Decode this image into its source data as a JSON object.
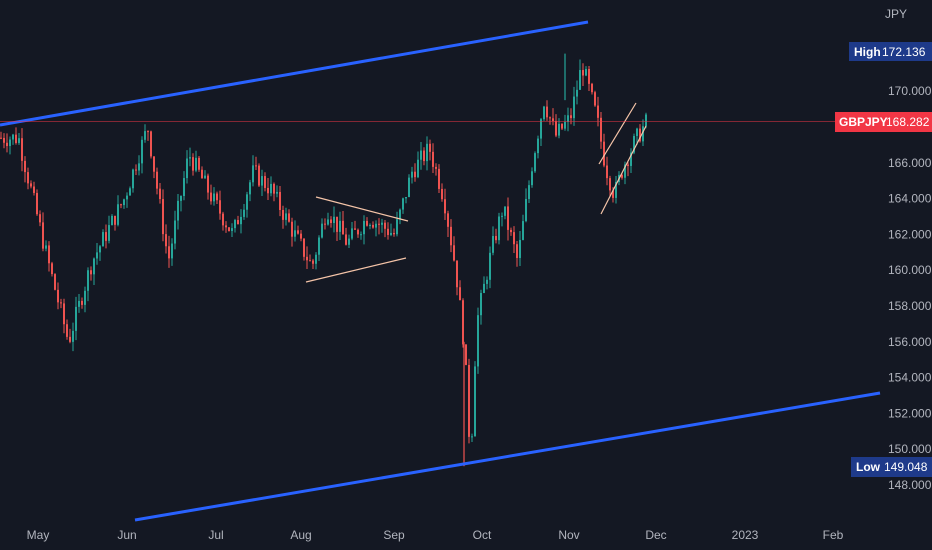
{
  "chart_data": {
    "type": "candlestick",
    "symbol": "GBPJPY",
    "currency": "JPY",
    "ylim": [
      146.8,
      173.8
    ],
    "y_ticks": [
      "148.000",
      "150.000",
      "152.000",
      "154.000",
      "156.000",
      "158.000",
      "160.000",
      "162.000",
      "164.000",
      "166.000",
      "168.000",
      "170.000"
    ],
    "x_ticks": [
      "May",
      "Jun",
      "Jul",
      "Aug",
      "Sep",
      "Oct",
      "Nov",
      "Dec",
      "2023",
      "Feb"
    ],
    "last_price": {
      "label": "GBPJPY",
      "value": "168.282",
      "color": "#f23645"
    },
    "high": {
      "label": "High",
      "value": "172.136"
    },
    "low": {
      "label": "Low",
      "value": "149.048"
    },
    "colors": {
      "up": "#26a69a",
      "down": "#ef5350",
      "trendline": "#2962ff",
      "pattern": "#f5c4a8",
      "axis_text": "#b2b5be",
      "background": "#141823"
    },
    "approx_close_path": [
      [
        "2022-04-25",
        167.4
      ],
      [
        "2022-05-05",
        160.5
      ],
      [
        "2022-05-12",
        156.0
      ],
      [
        "2022-05-20",
        160.5
      ],
      [
        "2022-05-31",
        164.0
      ],
      [
        "2022-06-08",
        168.0
      ],
      [
        "2022-06-15",
        160.5
      ],
      [
        "2022-06-22",
        166.5
      ],
      [
        "2022-06-30",
        164.0
      ],
      [
        "2022-07-07",
        162.0
      ],
      [
        "2022-07-14",
        165.5
      ],
      [
        "2022-07-20",
        164.5
      ],
      [
        "2022-07-28",
        162.0
      ],
      [
        "2022-08-03",
        160.2
      ],
      [
        "2022-08-08",
        163.5
      ],
      [
        "2022-08-15",
        161.5
      ],
      [
        "2022-08-22",
        163.0
      ],
      [
        "2022-08-31",
        162.0
      ],
      [
        "2022-09-06",
        165.5
      ],
      [
        "2022-09-12",
        166.8
      ],
      [
        "2022-09-17",
        164.0
      ],
      [
        "2022-09-21",
        160.0
      ],
      [
        "2022-09-24",
        155.5
      ],
      [
        "2022-09-26",
        149.3
      ],
      [
        "2022-09-28",
        157.0
      ],
      [
        "2022-10-03",
        161.0
      ],
      [
        "2022-10-07",
        163.5
      ],
      [
        "2022-10-12",
        160.5
      ],
      [
        "2022-10-17",
        166.0
      ],
      [
        "2022-10-21",
        169.5
      ],
      [
        "2022-10-25",
        167.5
      ],
      [
        "2022-10-30",
        168.5
      ],
      [
        "2022-11-03",
        171.5
      ],
      [
        "2022-11-08",
        168.5
      ],
      [
        "2022-11-11",
        165.8
      ],
      [
        "2022-11-14",
        164.2
      ],
      [
        "2022-11-17",
        165.8
      ],
      [
        "2022-11-21",
        167.2
      ],
      [
        "2022-11-25",
        168.3
      ]
    ]
  }
}
